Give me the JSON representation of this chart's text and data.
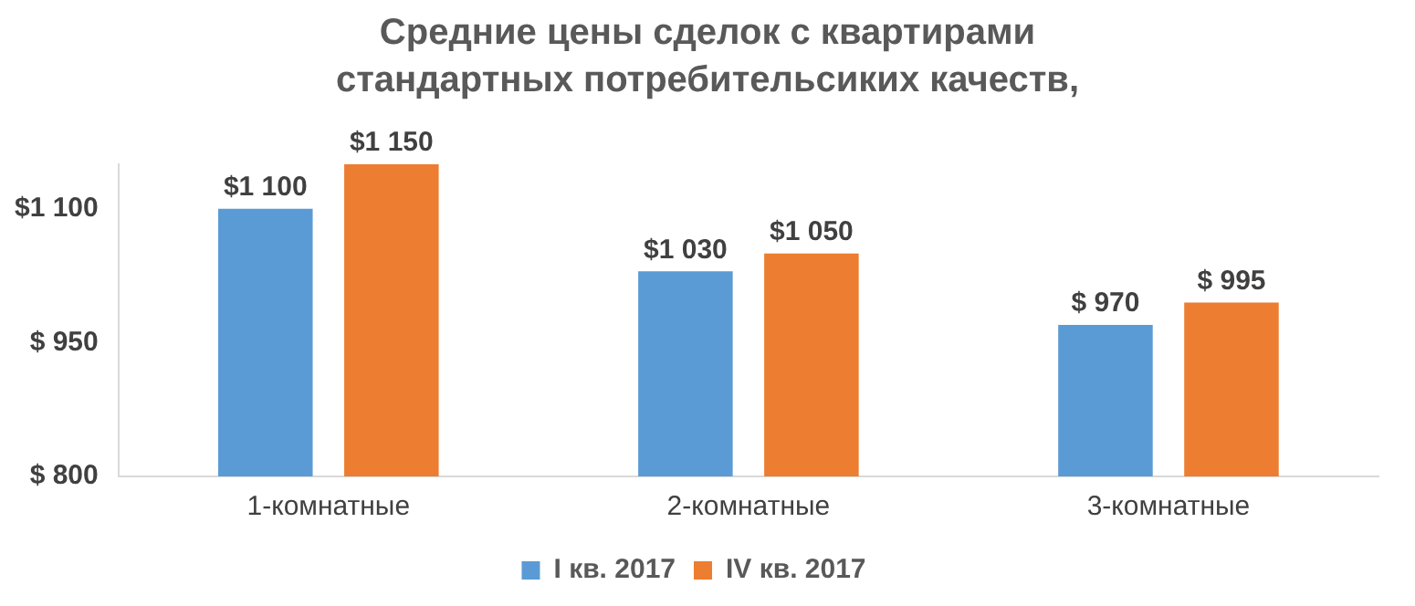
{
  "chart_data": {
    "type": "bar",
    "title": "Средние цены сделок с квартирами стандартных потребительсиких качеств,",
    "categories": [
      "1-комнатные",
      "2-комнатные",
      "3-комнатные"
    ],
    "series": [
      {
        "name": "I кв. 2017",
        "color": "#5b9bd5",
        "values": [
          1100,
          1030,
          970
        ],
        "value_labels": [
          "$1 100",
          "$1 030",
          "$ 970"
        ]
      },
      {
        "name": "IV кв. 2017",
        "color": "#ed7d31",
        "values": [
          1150,
          1050,
          995
        ],
        "value_labels": [
          "$1 150",
          "$1 050",
          "$ 995"
        ]
      }
    ],
    "yticks": [
      {
        "value": 800,
        "label": "$ 800"
      },
      {
        "value": 950,
        "label": "$ 950"
      },
      {
        "value": 1100,
        "label": "$1 100"
      }
    ],
    "ylim": [
      800,
      1150
    ],
    "grid": false,
    "legend": "bottom"
  }
}
